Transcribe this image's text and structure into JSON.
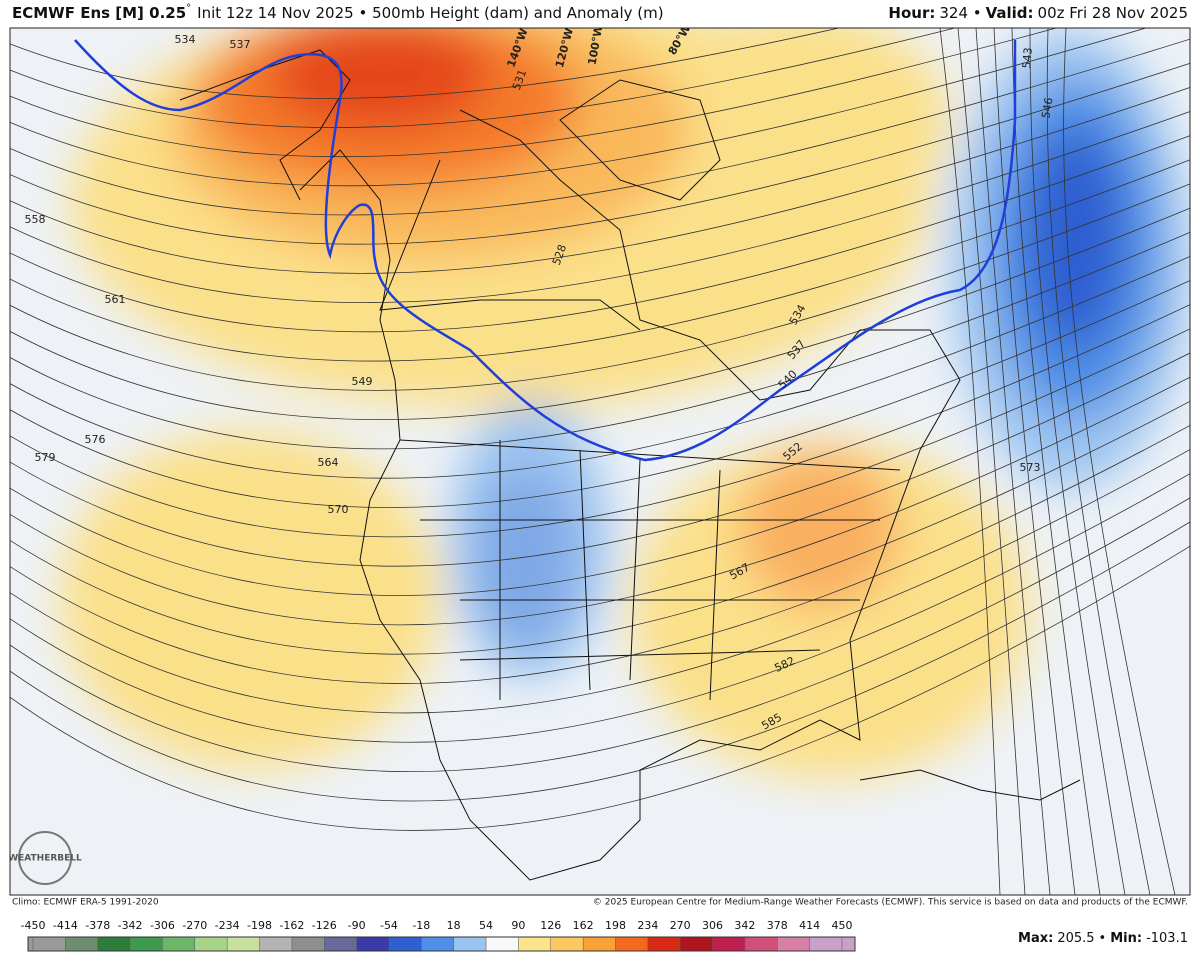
{
  "header": {
    "title": "ECMWF Ens [M] 0.25",
    "degree": "°",
    "subtitle": "Init 12z 14 Nov 2025 • 500mb Height (dam) and Anomaly (m)",
    "hour_label": "Hour:",
    "hour": "324 •",
    "valid_label": "Valid:",
    "valid": "00z Fri 28 Nov 2025"
  },
  "map": {
    "contour_labels": [
      534,
      537,
      531,
      558,
      561,
      549,
      576,
      579,
      564,
      570,
      528,
      534,
      537,
      540,
      552,
      573,
      567,
      582,
      585,
      543,
      546
    ],
    "longitude_labels": [
      "140°W",
      "120°W",
      "100°W",
      "80°W"
    ],
    "logo": "WEATHERBELL"
  },
  "footer": {
    "climo": "Climo: ECMWF ERA-5 1991-2020",
    "copyright": "© 2025 European Centre for Medium-Range Weather Forecasts (ECMWF). This service is based on data and products of the ECMWF."
  },
  "colorbar": {
    "ticks": [
      -450,
      -414,
      -378,
      -342,
      -306,
      -270,
      -234,
      -198,
      -162,
      -126,
      -90,
      -54,
      -18,
      18,
      54,
      90,
      126,
      162,
      198,
      234,
      270,
      306,
      342,
      378,
      414,
      450
    ],
    "colors": [
      "#9a9a9a",
      "#6f8d6f",
      "#2e7d3a",
      "#3e9a4c",
      "#6cb86a",
      "#a8d48a",
      "#c8e0a0",
      "#b4b4b4",
      "#8e8e8e",
      "#6a6a9a",
      "#3a3aa8",
      "#2f5fd0",
      "#4f8fe6",
      "#9cc4f0",
      "#f8f8f8",
      "#fbe48a",
      "#fbc860",
      "#f9a23a",
      "#f36a1e",
      "#d92a16",
      "#b0141e",
      "#c02050",
      "#d0507a",
      "#d880a8",
      "#c8a0c8"
    ]
  },
  "stats": {
    "max_label": "Max:",
    "max": 205.5,
    "separator": "•",
    "min_label": "Min:",
    "min": -103.1
  }
}
